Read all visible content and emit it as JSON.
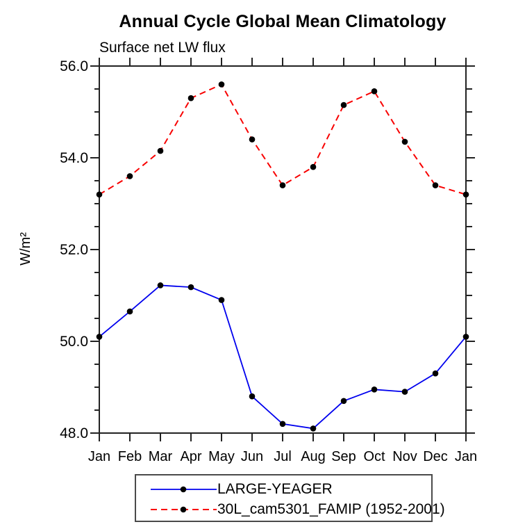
{
  "chart_data": {
    "type": "line",
    "title": "Annual Cycle Global Mean Climatology",
    "subtitle": "Surface net LW flux",
    "ylabel": "W/m²",
    "categories": [
      "Jan",
      "Feb",
      "Mar",
      "Apr",
      "May",
      "Jun",
      "Jul",
      "Aug",
      "Sep",
      "Oct",
      "Nov",
      "Dec",
      "Jan"
    ],
    "ylim": [
      48.0,
      56.0
    ],
    "ytick_major": [
      48.0,
      50.0,
      52.0,
      54.0,
      56.0
    ],
    "ytick_labels": [
      "48.0",
      "50.0",
      "52.0",
      "54.0",
      "56.0"
    ],
    "ytick_minor_step": 0.5,
    "grid": false,
    "legend_position": "bottom-center",
    "axis_color": "#222222",
    "marker_color": "#000000",
    "series": [
      {
        "name": "LARGE-YEAGER",
        "color": "#0000ee",
        "style": "solid",
        "marker": "circle",
        "values": [
          50.1,
          50.65,
          51.22,
          51.18,
          50.9,
          48.8,
          48.2,
          48.1,
          48.7,
          48.95,
          48.9,
          49.3,
          50.1
        ]
      },
      {
        "name": "30L_cam5301_FAMIP (1952-2001)",
        "color": "#f80000",
        "style": "dashed",
        "marker": "circle",
        "values": [
          53.2,
          53.6,
          54.15,
          55.3,
          55.6,
          54.4,
          53.4,
          53.8,
          55.15,
          55.45,
          54.35,
          53.4,
          53.2
        ]
      }
    ]
  }
}
